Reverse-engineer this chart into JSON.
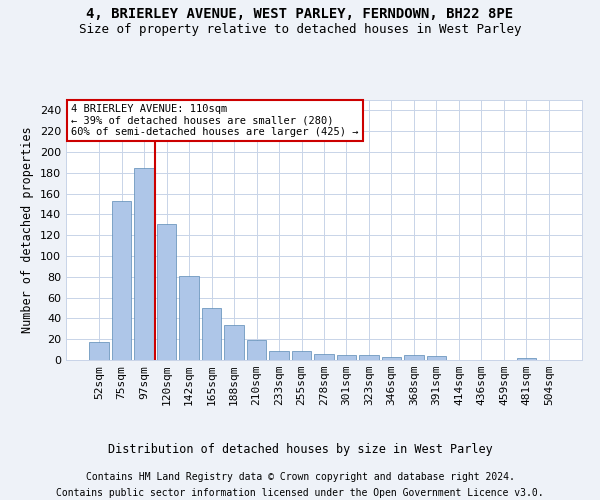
{
  "title": "4, BRIERLEY AVENUE, WEST PARLEY, FERNDOWN, BH22 8PE",
  "subtitle": "Size of property relative to detached houses in West Parley",
  "xlabel": "Distribution of detached houses by size in West Parley",
  "ylabel": "Number of detached properties",
  "categories": [
    "52sqm",
    "75sqm",
    "97sqm",
    "120sqm",
    "142sqm",
    "165sqm",
    "188sqm",
    "210sqm",
    "233sqm",
    "255sqm",
    "278sqm",
    "301sqm",
    "323sqm",
    "346sqm",
    "368sqm",
    "391sqm",
    "414sqm",
    "436sqm",
    "459sqm",
    "481sqm",
    "504sqm"
  ],
  "values": [
    17,
    153,
    185,
    131,
    81,
    50,
    34,
    19,
    9,
    9,
    6,
    5,
    5,
    3,
    5,
    4,
    0,
    0,
    0,
    2,
    0
  ],
  "bar_color": "#aec6e8",
  "bar_edge_color": "#5a8ab5",
  "vline_color": "#cc0000",
  "vline_pos": 2.5,
  "annotation_line1": "4 BRIERLEY AVENUE: 110sqm",
  "annotation_line2": "← 39% of detached houses are smaller (280)",
  "annotation_line3": "60% of semi-detached houses are larger (425) →",
  "annotation_box_color": "#ffffff",
  "annotation_box_edge_color": "#cc0000",
  "ylim": [
    0,
    250
  ],
  "yticks": [
    0,
    20,
    40,
    60,
    80,
    100,
    120,
    140,
    160,
    180,
    200,
    220,
    240
  ],
  "footer_line1": "Contains HM Land Registry data © Crown copyright and database right 2024.",
  "footer_line2": "Contains public sector information licensed under the Open Government Licence v3.0.",
  "bg_color": "#eef2f8",
  "plot_bg_color": "#ffffff",
  "grid_color": "#c8d4e8"
}
